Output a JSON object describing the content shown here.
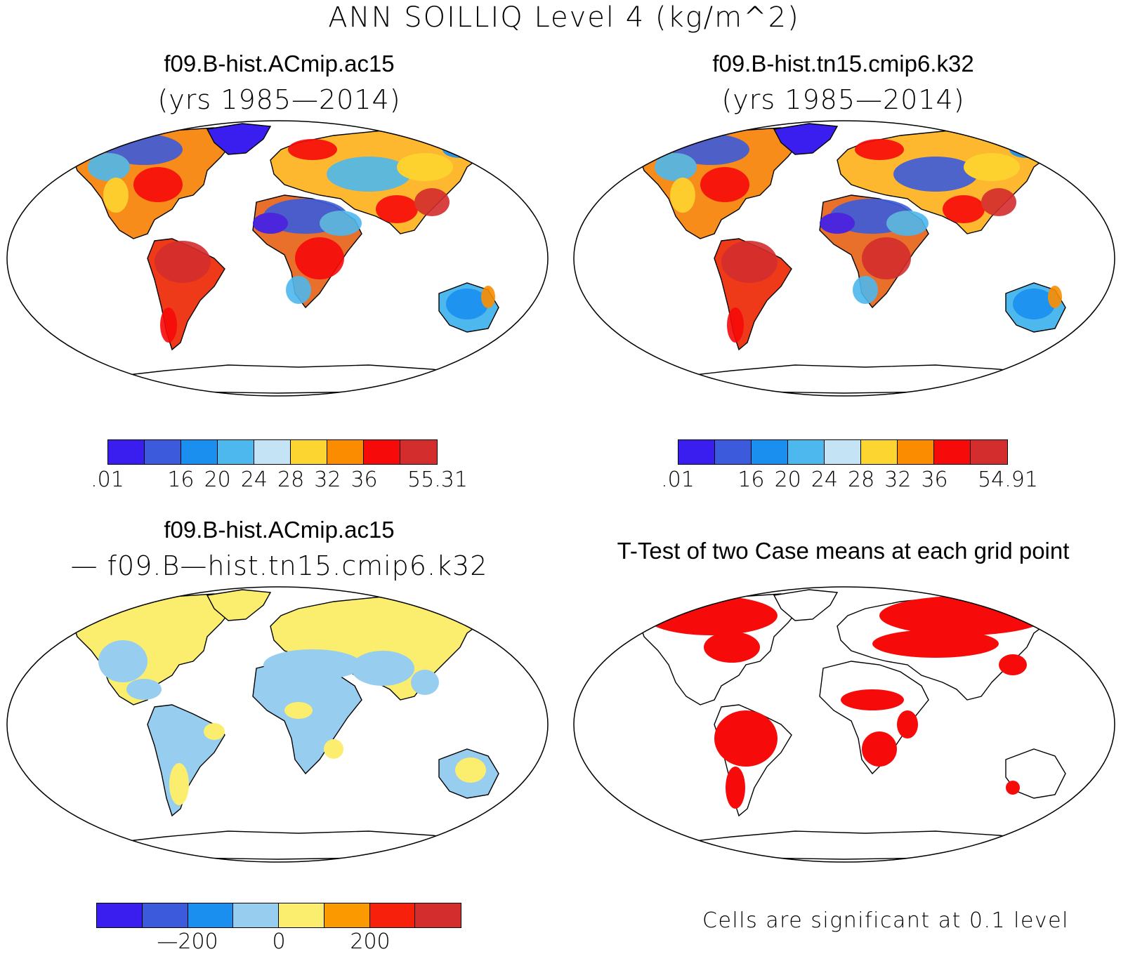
{
  "title": "ANN SOILLIQ Level 4 (kg/m^2)",
  "palette": {
    "p1": "#3a1ef0",
    "p2": "#3b5bdc",
    "p3": "#1a8ff0",
    "p4": "#4db8ee",
    "p5": "#c4e4f5",
    "p6": "#fdd530",
    "p7": "#fb8c00",
    "p8": "#f70a0a",
    "p9": "#d32d2d"
  },
  "diff_palette": [
    "#3a1ef0",
    "#3b5bdc",
    "#1a8ff0",
    "#97cdee",
    "#fbee6e",
    "#fb9900",
    "#f7200a",
    "#d32d2d"
  ],
  "panels": {
    "case1": {
      "title": "f09.B-hist.ACmip.ac15",
      "subtitle": "(yrs 1985—2014)",
      "colorbar_labels": [
        ".01",
        "16",
        "20",
        "24",
        "28",
        "32",
        "36",
        "55.31"
      ]
    },
    "case2": {
      "title": "f09.B-hist.tn15.cmip6.k32",
      "subtitle": "(yrs 1985—2014)",
      "colorbar_labels": [
        ".01",
        "16",
        "20",
        "24",
        "28",
        "32",
        "36",
        "54.91"
      ]
    },
    "diff": {
      "title": "f09.B-hist.ACmip.ac15",
      "subtitle": "— f09.B—hist.tn15.cmip6.k32",
      "colorbar_labels": [
        "—200",
        "0",
        "200"
      ]
    },
    "ttest": {
      "title": "T-Test of two Case means at each grid point",
      "significance_note": "Cells are significant at 0.1 level",
      "significant_color": "#f70a0a"
    }
  }
}
